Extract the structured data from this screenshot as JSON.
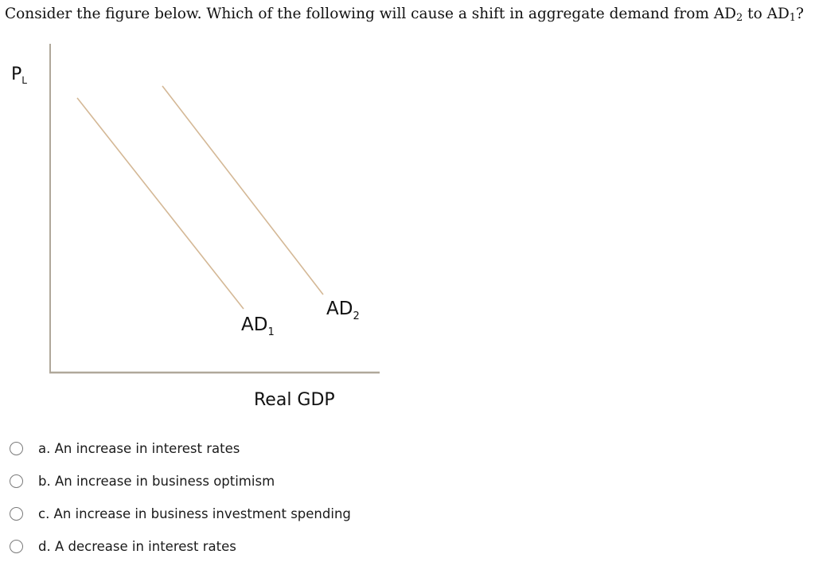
{
  "question": {
    "prefix": "Consider the figure below. Which of the following will cause a shift in aggregate demand from AD",
    "sub_from": "2",
    "middle": " to AD",
    "sub_to": "1",
    "suffix": "?"
  },
  "figure": {
    "y_axis_label": "P",
    "y_axis_label_sub": "L",
    "x_axis_label": "Real GDP",
    "curves": [
      {
        "label": "AD",
        "label_sub": "1"
      },
      {
        "label": "AD",
        "label_sub": "2"
      }
    ],
    "colors": {
      "axis": "#b0a89a",
      "curve": "#d4b896"
    }
  },
  "options": [
    {
      "label": "a. An increase in interest rates"
    },
    {
      "label": "b. An increase in business optimism"
    },
    {
      "label": "c. An increase in business investment spending"
    },
    {
      "label": "d. A decrease in interest rates"
    }
  ]
}
